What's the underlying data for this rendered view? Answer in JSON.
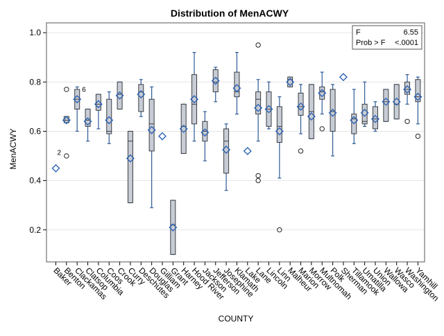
{
  "chart_data": {
    "type": "box",
    "title": "Distribution of MenACWY",
    "xlabel": "COUNTY",
    "ylabel": "MenACWY",
    "ylim": [
      0.07,
      1.04
    ],
    "yticks": [
      0.2,
      0.4,
      0.6,
      0.8,
      1.0
    ],
    "ytick_labels": [
      "0.2",
      "0.4",
      "0.6",
      "0.8",
      "1.0"
    ],
    "grid": true,
    "stats_box": {
      "rows": [
        {
          "label": "F",
          "value": "6.55"
        },
        {
          "label": "Prob > F",
          "value": "<.0001"
        }
      ]
    },
    "colors": {
      "box_fill": "#c8ccd4",
      "box_stroke": "#383c44",
      "whisker": "#2d5a96",
      "mean_marker": "#2e64b4",
      "outlier": "#222222",
      "grid": "#e6e6e6"
    },
    "categories": [
      "Baker",
      "Benton",
      "Clackamas",
      "Clatsop",
      "Columbia",
      "Coos",
      "Crook",
      "Curry",
      "Deschutes",
      "Douglas",
      "Gilliam",
      "Grant",
      "Harney",
      "Hood River",
      "Jackson",
      "Jefferson",
      "Josephine",
      "Klamath",
      "Lake",
      "Lane",
      "Lincoln",
      "Linn",
      "Malheur",
      "Marion",
      "Morrow",
      "Multnomah",
      "Polk",
      "Sherman",
      "Tillamook",
      "Umatilla",
      "Union",
      "Wallowa",
      "Wasco",
      "Washington",
      "Yamhill"
    ],
    "boxes": [
      {
        "q1": 0.45,
        "median": 0.45,
        "q3": 0.45,
        "wlow": 0.45,
        "whigh": 0.45,
        "mean": 0.45,
        "outliers": [],
        "annotation": "2"
      },
      {
        "q1": 0.635,
        "median": 0.645,
        "q3": 0.66,
        "wlow": 0.635,
        "whigh": 0.66,
        "mean": 0.645,
        "outliers": [
          0.77,
          0.5
        ],
        "annotation": ""
      },
      {
        "q1": 0.69,
        "median": 0.73,
        "q3": 0.77,
        "wlow": 0.6,
        "whigh": 0.78,
        "mean": 0.73,
        "outliers": [],
        "annotation": "6"
      },
      {
        "q1": 0.62,
        "median": 0.645,
        "q3": 0.69,
        "wlow": 0.56,
        "whigh": 0.69,
        "mean": 0.64,
        "outliers": [],
        "annotation": ""
      },
      {
        "q1": 0.685,
        "median": 0.71,
        "q3": 0.75,
        "wlow": 0.61,
        "whigh": 0.75,
        "mean": 0.71,
        "outliers": [],
        "annotation": ""
      },
      {
        "q1": 0.59,
        "median": 0.6,
        "q3": 0.73,
        "wlow": 0.55,
        "whigh": 0.76,
        "mean": 0.645,
        "outliers": [],
        "annotation": ""
      },
      {
        "q1": 0.69,
        "median": 0.75,
        "q3": 0.8,
        "wlow": 0.69,
        "whigh": 0.8,
        "mean": 0.745,
        "outliers": [],
        "annotation": ""
      },
      {
        "q1": 0.31,
        "median": 0.56,
        "q3": 0.6,
        "wlow": 0.31,
        "whigh": 0.6,
        "mean": 0.49,
        "outliers": [],
        "annotation": ""
      },
      {
        "q1": 0.68,
        "median": 0.76,
        "q3": 0.79,
        "wlow": 0.66,
        "whigh": 0.81,
        "mean": 0.75,
        "outliers": [],
        "annotation": ""
      },
      {
        "q1": 0.52,
        "median": 0.63,
        "q3": 0.73,
        "wlow": 0.29,
        "whigh": 0.78,
        "mean": 0.605,
        "outliers": [],
        "annotation": ""
      },
      {
        "q1": 0.58,
        "median": 0.58,
        "q3": 0.58,
        "wlow": 0.58,
        "whigh": 0.58,
        "mean": 0.58,
        "outliers": [],
        "annotation": ""
      },
      {
        "q1": 0.1,
        "median": 0.22,
        "q3": 0.32,
        "wlow": 0.1,
        "whigh": 0.32,
        "mean": 0.21,
        "outliers": [],
        "annotation": ""
      },
      {
        "q1": 0.51,
        "median": 0.62,
        "q3": 0.71,
        "wlow": 0.51,
        "whigh": 0.71,
        "mean": 0.61,
        "outliers": [],
        "annotation": ""
      },
      {
        "q1": 0.63,
        "median": 0.71,
        "q3": 0.83,
        "wlow": 0.56,
        "whigh": 0.92,
        "mean": 0.73,
        "outliers": [],
        "annotation": ""
      },
      {
        "q1": 0.56,
        "median": 0.6,
        "q3": 0.64,
        "wlow": 0.48,
        "whigh": 0.68,
        "mean": 0.595,
        "outliers": [],
        "annotation": ""
      },
      {
        "q1": 0.76,
        "median": 0.8,
        "q3": 0.85,
        "wlow": 0.72,
        "whigh": 0.86,
        "mean": 0.805,
        "outliers": [],
        "annotation": ""
      },
      {
        "q1": 0.43,
        "median": 0.56,
        "q3": 0.61,
        "wlow": 0.36,
        "whigh": 0.63,
        "mean": 0.525,
        "outliers": [],
        "annotation": ""
      },
      {
        "q1": 0.74,
        "median": 0.76,
        "q3": 0.84,
        "wlow": 0.67,
        "whigh": 0.92,
        "mean": 0.775,
        "outliers": [],
        "annotation": ""
      },
      {
        "q1": 0.52,
        "median": 0.52,
        "q3": 0.52,
        "wlow": 0.52,
        "whigh": 0.52,
        "mean": 0.52,
        "outliers": [],
        "annotation": ""
      },
      {
        "q1": 0.67,
        "median": 0.73,
        "q3": 0.76,
        "wlow": 0.56,
        "whigh": 0.81,
        "mean": 0.695,
        "outliers": [
          0.95,
          0.42,
          0.4
        ],
        "annotation": ""
      },
      {
        "q1": 0.62,
        "median": 0.69,
        "q3": 0.76,
        "wlow": 0.61,
        "whigh": 0.8,
        "mean": 0.69,
        "outliers": [],
        "annotation": ""
      },
      {
        "q1": 0.555,
        "median": 0.62,
        "q3": 0.7,
        "wlow": 0.41,
        "whigh": 0.74,
        "mean": 0.6,
        "outliers": [
          0.2
        ],
        "annotation": ""
      },
      {
        "q1": 0.78,
        "median": 0.81,
        "q3": 0.82,
        "wlow": 0.78,
        "whigh": 0.82,
        "mean": 0.8,
        "outliers": [],
        "annotation": ""
      },
      {
        "q1": 0.665,
        "median": 0.7,
        "q3": 0.755,
        "wlow": 0.59,
        "whigh": 0.79,
        "mean": 0.7,
        "outliers": [
          0.52
        ],
        "annotation": ""
      },
      {
        "q1": 0.57,
        "median": 0.68,
        "q3": 0.79,
        "wlow": 0.57,
        "whigh": 0.79,
        "mean": 0.66,
        "outliers": [],
        "annotation": ""
      },
      {
        "q1": 0.73,
        "median": 0.76,
        "q3": 0.78,
        "wlow": 0.67,
        "whigh": 0.84,
        "mean": 0.755,
        "outliers": [
          0.61
        ],
        "annotation": ""
      },
      {
        "q1": 0.6,
        "median": 0.68,
        "q3": 0.77,
        "wlow": 0.5,
        "whigh": 0.79,
        "mean": 0.675,
        "outliers": [],
        "annotation": ""
      },
      {
        "q1": 0.82,
        "median": 0.82,
        "q3": 0.82,
        "wlow": 0.82,
        "whigh": 0.82,
        "mean": 0.82,
        "outliers": [],
        "annotation": ""
      },
      {
        "q1": 0.59,
        "median": 0.65,
        "q3": 0.67,
        "wlow": 0.55,
        "whigh": 0.77,
        "mean": 0.645,
        "outliers": [],
        "annotation": ""
      },
      {
        "q1": 0.63,
        "median": 0.64,
        "q3": 0.71,
        "wlow": 0.62,
        "whigh": 0.8,
        "mean": 0.675,
        "outliers": [],
        "annotation": ""
      },
      {
        "q1": 0.61,
        "median": 0.65,
        "q3": 0.7,
        "wlow": 0.6,
        "whigh": 0.72,
        "mean": 0.65,
        "outliers": [],
        "annotation": ""
      },
      {
        "q1": 0.64,
        "median": 0.72,
        "q3": 0.77,
        "wlow": 0.64,
        "whigh": 0.77,
        "mean": 0.72,
        "outliers": [],
        "annotation": ""
      },
      {
        "q1": 0.65,
        "median": 0.71,
        "q3": 0.79,
        "wlow": 0.65,
        "whigh": 0.79,
        "mean": 0.72,
        "outliers": [],
        "annotation": ""
      },
      {
        "q1": 0.75,
        "median": 0.77,
        "q3": 0.8,
        "wlow": 0.71,
        "whigh": 0.83,
        "mean": 0.77,
        "outliers": [
          0.64
        ],
        "annotation": ""
      },
      {
        "q1": 0.72,
        "median": 0.74,
        "q3": 0.81,
        "wlow": 0.63,
        "whigh": 0.82,
        "mean": 0.74,
        "outliers": [
          0.58
        ],
        "annotation": ""
      }
    ]
  }
}
